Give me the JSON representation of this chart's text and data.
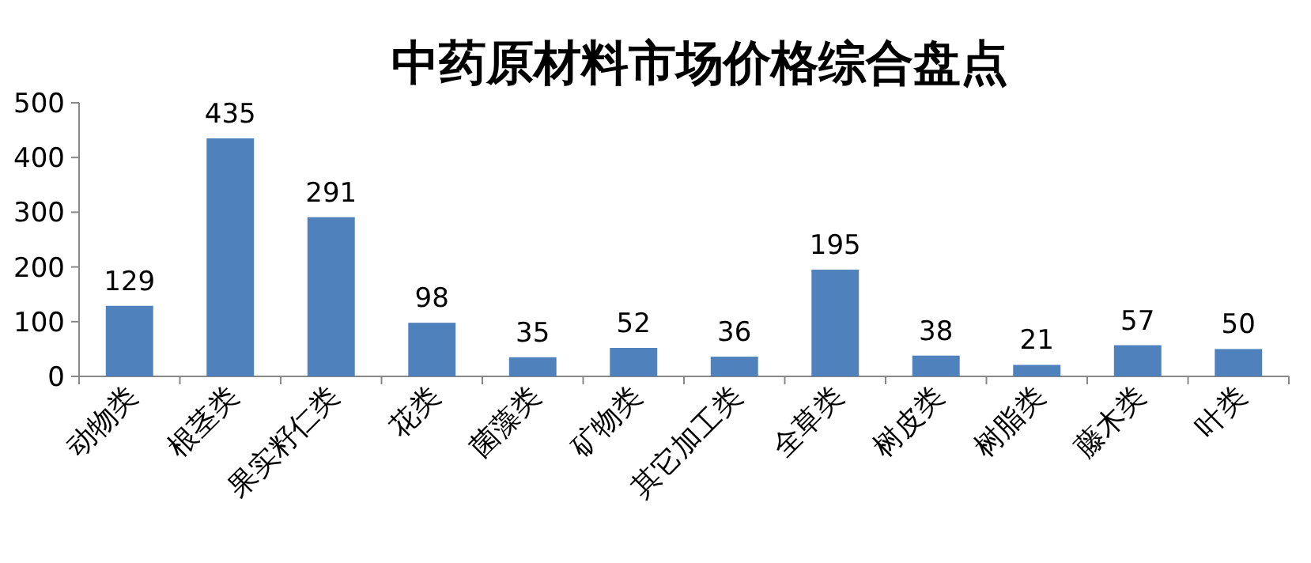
{
  "chart_data": {
    "type": "bar",
    "title": "中药原材料市场价格综合盘点",
    "categories": [
      "动物类",
      "根茎类",
      "果实籽仁类",
      "花类",
      "菌藻类",
      "矿物类",
      "其它加工类",
      "全草类",
      "树皮类",
      "树脂类",
      "藤木类",
      "叶类"
    ],
    "values": [
      129,
      435,
      291,
      98,
      35,
      52,
      36,
      195,
      38,
      21,
      57,
      50
    ],
    "color": "#4f81bd",
    "ylim": [
      0,
      500
    ],
    "yticks": [
      0,
      100,
      200,
      300,
      400,
      500
    ],
    "data_labels": true,
    "grid": false
  }
}
